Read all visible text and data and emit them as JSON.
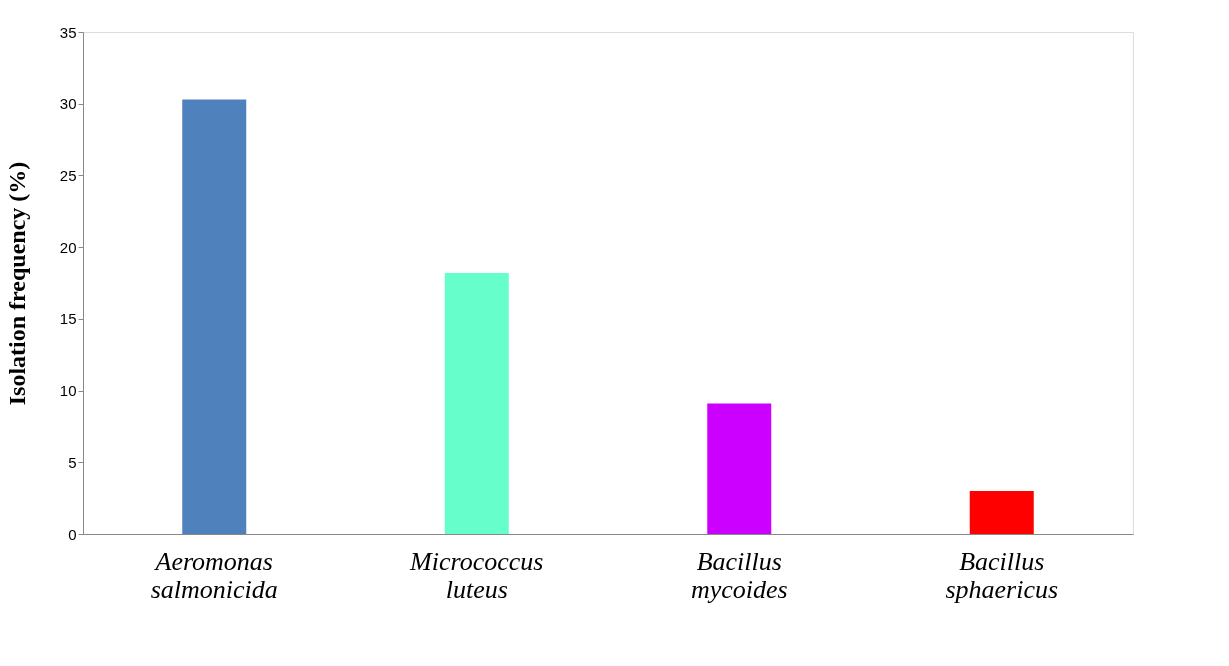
{
  "chart_data": {
    "type": "bar",
    "ylabel": "Isolation frequency (%)",
    "categories": [
      "Aeromonas salmonicida",
      "Micrococcus luteus",
      "Bacillus mycoides",
      "Bacillus sphaericus"
    ],
    "values": [
      30.3,
      18.2,
      9.1,
      3.0
    ],
    "colors": [
      "#4f81bd",
      "#66ffcc",
      "#cc00ff",
      "#ff0000"
    ],
    "ylim": [
      0,
      35
    ],
    "yticks": [
      0,
      5,
      10,
      15,
      20,
      25,
      30,
      35
    ],
    "grid": false,
    "legend": false
  }
}
